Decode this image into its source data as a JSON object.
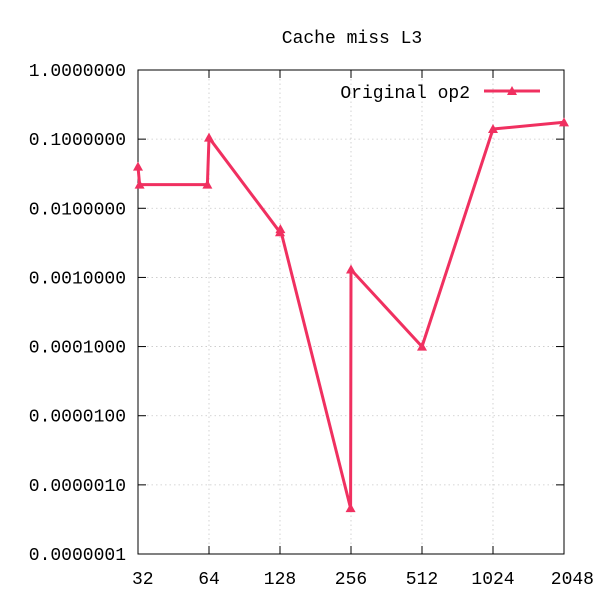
{
  "chart_data": {
    "type": "line",
    "title": "Cache miss L3",
    "xlabel": "",
    "ylabel": "",
    "x_scale": "log2",
    "y_scale": "log10",
    "xlim": [
      32,
      2048
    ],
    "ylim": [
      1e-07,
      1.0
    ],
    "x_ticks": [
      {
        "value": 32,
        "label": "32"
      },
      {
        "value": 64,
        "label": "64"
      },
      {
        "value": 128,
        "label": "128"
      },
      {
        "value": 256,
        "label": "256"
      },
      {
        "value": 512,
        "label": "512"
      },
      {
        "value": 1024,
        "label": "1024"
      },
      {
        "value": 2048,
        "label": "2048"
      }
    ],
    "y_ticks": [
      {
        "value": 1.0,
        "label": "1.0000000"
      },
      {
        "value": 0.1,
        "label": "0.1000000"
      },
      {
        "value": 0.01,
        "label": "0.0100000"
      },
      {
        "value": 0.001,
        "label": "0.0010000"
      },
      {
        "value": 0.0001,
        "label": "0.0001000"
      },
      {
        "value": 1e-05,
        "label": "0.0000100"
      },
      {
        "value": 1e-06,
        "label": "0.0000010"
      },
      {
        "value": 1e-07,
        "label": "0.0000001"
      }
    ],
    "grid": true,
    "legend_position": "top-right",
    "series": [
      {
        "name": "Original op2",
        "color": "#f03060",
        "marker": "triangle",
        "points": [
          {
            "x": 32,
            "y": 0.04
          },
          {
            "x": 32.5,
            "y": 0.022
          },
          {
            "x": 63,
            "y": 0.022
          },
          {
            "x": 64,
            "y": 0.105
          },
          {
            "x": 128,
            "y": 0.0045
          },
          {
            "x": 128.5,
            "y": 0.005
          },
          {
            "x": 255,
            "y": 4.6e-07
          },
          {
            "x": 256,
            "y": 0.0013
          },
          {
            "x": 512,
            "y": 0.0001
          },
          {
            "x": 1024,
            "y": 0.14
          },
          {
            "x": 2048,
            "y": 0.175
          }
        ]
      }
    ]
  }
}
